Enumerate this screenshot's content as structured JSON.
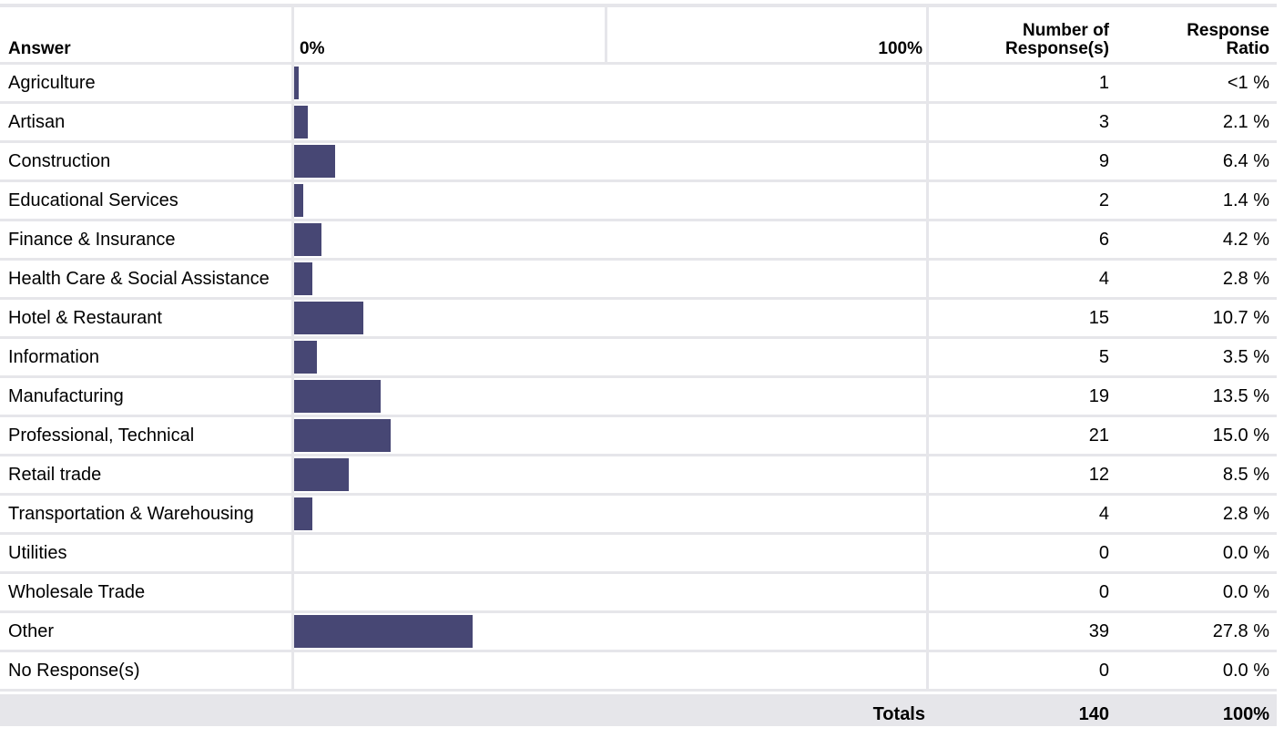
{
  "header": {
    "answer_label": "Answer",
    "scale_start_label": "0%",
    "scale_end_label": "100%",
    "count_label_line1": "Number of",
    "count_label_line2": "Response(s)",
    "ratio_label_line1": "Response",
    "ratio_label_line2": "Ratio"
  },
  "totals": {
    "label": "Totals",
    "count": "140",
    "ratio": "100%"
  },
  "colors": {
    "bar": "#474774",
    "grid": "#e6e6ea"
  },
  "chart_data": {
    "type": "bar",
    "orientation": "horizontal",
    "categories": [
      "Agriculture",
      "Artisan",
      "Construction",
      "Educational Services",
      "Finance & Insurance",
      "Health Care & Social Assistance",
      "Hotel & Restaurant",
      "Information",
      "Manufacturing",
      "Professional, Technical",
      "Retail trade",
      "Transportation & Warehousing",
      "Utilities",
      "Wholesale Trade",
      "Other",
      "No Response(s)"
    ],
    "counts": [
      "1",
      "3",
      "9",
      "2",
      "6",
      "4",
      "15",
      "5",
      "19",
      "21",
      "12",
      "4",
      "0",
      "0",
      "39",
      "0"
    ],
    "ratio_labels": [
      "<1 %",
      "2.1 %",
      "6.4 %",
      "1.4 %",
      "4.2 %",
      "2.8 %",
      "10.7 %",
      "3.5 %",
      "13.5 %",
      "15.0 %",
      "8.5 %",
      "2.8 %",
      "0.0 %",
      "0.0 %",
      "27.8 %",
      "0.0 %"
    ],
    "values": [
      0.7,
      2.1,
      6.4,
      1.4,
      4.2,
      2.8,
      10.7,
      3.5,
      13.5,
      15.0,
      8.5,
      2.8,
      0.0,
      0.0,
      27.8,
      0.0
    ],
    "xlim": [
      0,
      100
    ]
  }
}
